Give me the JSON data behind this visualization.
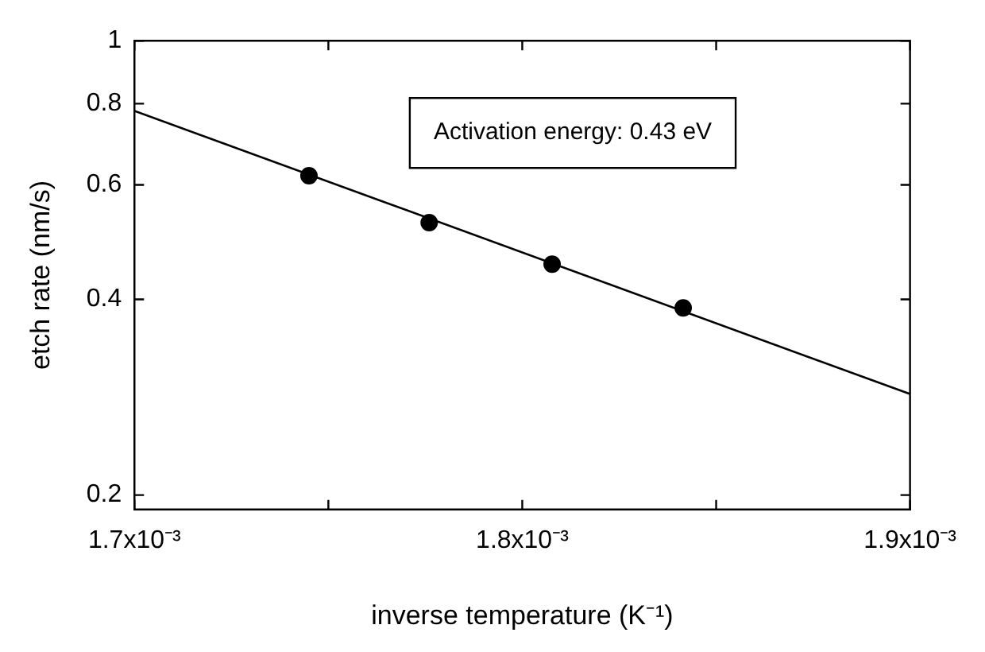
{
  "chart_data": {
    "type": "scatter",
    "xlabel": "inverse temperature (K⁻¹)",
    "ylabel": "etch rate (nm/s)",
    "x": [
      0.001745,
      0.001776,
      0.0018077,
      0.0018415
    ],
    "series": [
      {
        "type": "scatter",
        "color": "#000000",
        "values": [
          0.62,
          0.525,
          0.453,
          0.388
        ],
        "marker": "circle"
      },
      {
        "type": "line",
        "color": "#000000",
        "x": [
          0.0017,
          0.0019
        ],
        "values": [
          0.78,
          0.286
        ],
        "marker": "none",
        "line_style": "solid"
      }
    ],
    "annotations": [
      "Activation energy: 0.43 eV"
    ],
    "log": "y",
    "grid": false,
    "legend": false,
    "xlim": [
      0.0017,
      0.0019
    ],
    "xticks": [
      {
        "value": 0.0017,
        "label": "1.7x10⁻³"
      },
      {
        "value": 0.00175,
        "label": null
      },
      {
        "value": 0.0018,
        "label": "1.8x10⁻³"
      },
      {
        "value": 0.00185,
        "label": null
      },
      {
        "value": 0.0019,
        "label": "1.9x10⁻³"
      }
    ],
    "ylim": [
      0.19,
      1
    ],
    "yticks": [
      0.2,
      0.4,
      0.6,
      0.8,
      1
    ]
  }
}
